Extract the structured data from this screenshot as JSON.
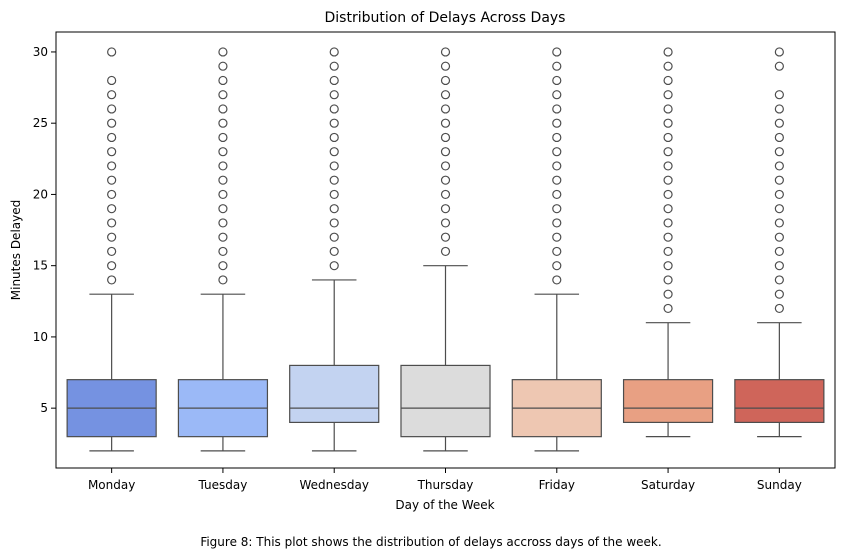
{
  "chart_data": {
    "type": "box",
    "title": "Distribution of Delays Across Days",
    "xlabel": "Day of the Week",
    "ylabel": "Minutes Delayed",
    "ylim": [
      0.8,
      31.4
    ],
    "yticks": [
      5,
      10,
      15,
      20,
      25,
      30
    ],
    "grid": false,
    "legend": "none",
    "categories": [
      "Monday",
      "Tuesday",
      "Wednesday",
      "Thursday",
      "Friday",
      "Saturday",
      "Sunday"
    ],
    "boxes": [
      {
        "name": "Monday",
        "color": "#7592e1",
        "whisker_low": 2,
        "q1": 3,
        "median": 5,
        "q3": 7,
        "whisker_high": 13,
        "outliers": [
          14,
          15,
          16,
          17,
          18,
          19,
          20,
          21,
          22,
          23,
          24,
          25,
          26,
          27,
          28,
          30
        ]
      },
      {
        "name": "Tuesday",
        "color": "#9bb9f7",
        "whisker_low": 2,
        "q1": 3,
        "median": 5,
        "q3": 7,
        "whisker_high": 13,
        "outliers": [
          14,
          15,
          16,
          17,
          18,
          19,
          20,
          21,
          22,
          23,
          24,
          25,
          26,
          27,
          28,
          29,
          30
        ]
      },
      {
        "name": "Wednesday",
        "color": "#c3d3f1",
        "whisker_low": 2,
        "q1": 4,
        "median": 5,
        "q3": 8,
        "whisker_high": 14,
        "outliers": [
          15,
          16,
          17,
          18,
          19,
          20,
          21,
          22,
          23,
          24,
          25,
          26,
          27,
          28,
          29,
          30
        ]
      },
      {
        "name": "Thursday",
        "color": "#dcdcdc",
        "whisker_low": 2,
        "q1": 3,
        "median": 5,
        "q3": 8,
        "whisker_high": 15,
        "outliers": [
          16,
          17,
          18,
          19,
          20,
          21,
          22,
          23,
          24,
          25,
          26,
          27,
          28,
          29,
          30
        ]
      },
      {
        "name": "Friday",
        "color": "#eec7b2",
        "whisker_low": 2,
        "q1": 3,
        "median": 5,
        "q3": 7,
        "whisker_high": 13,
        "outliers": [
          14,
          15,
          16,
          17,
          18,
          19,
          20,
          21,
          22,
          23,
          24,
          25,
          26,
          27,
          28,
          29,
          30
        ]
      },
      {
        "name": "Saturday",
        "color": "#e8a083",
        "whisker_low": 3,
        "q1": 4,
        "median": 5,
        "q3": 7,
        "whisker_high": 11,
        "outliers": [
          12,
          13,
          14,
          15,
          16,
          17,
          18,
          19,
          20,
          21,
          22,
          23,
          24,
          25,
          26,
          27,
          28,
          29,
          30
        ]
      },
      {
        "name": "Sunday",
        "color": "#cf655a",
        "whisker_low": 3,
        "q1": 4,
        "median": 5,
        "q3": 7,
        "whisker_high": 11,
        "outliers": [
          12,
          13,
          14,
          15,
          16,
          17,
          18,
          19,
          20,
          21,
          22,
          23,
          24,
          25,
          26,
          27,
          29,
          30
        ]
      }
    ]
  },
  "caption": "Figure 8: This plot shows the distribution of delays accross days of the week."
}
